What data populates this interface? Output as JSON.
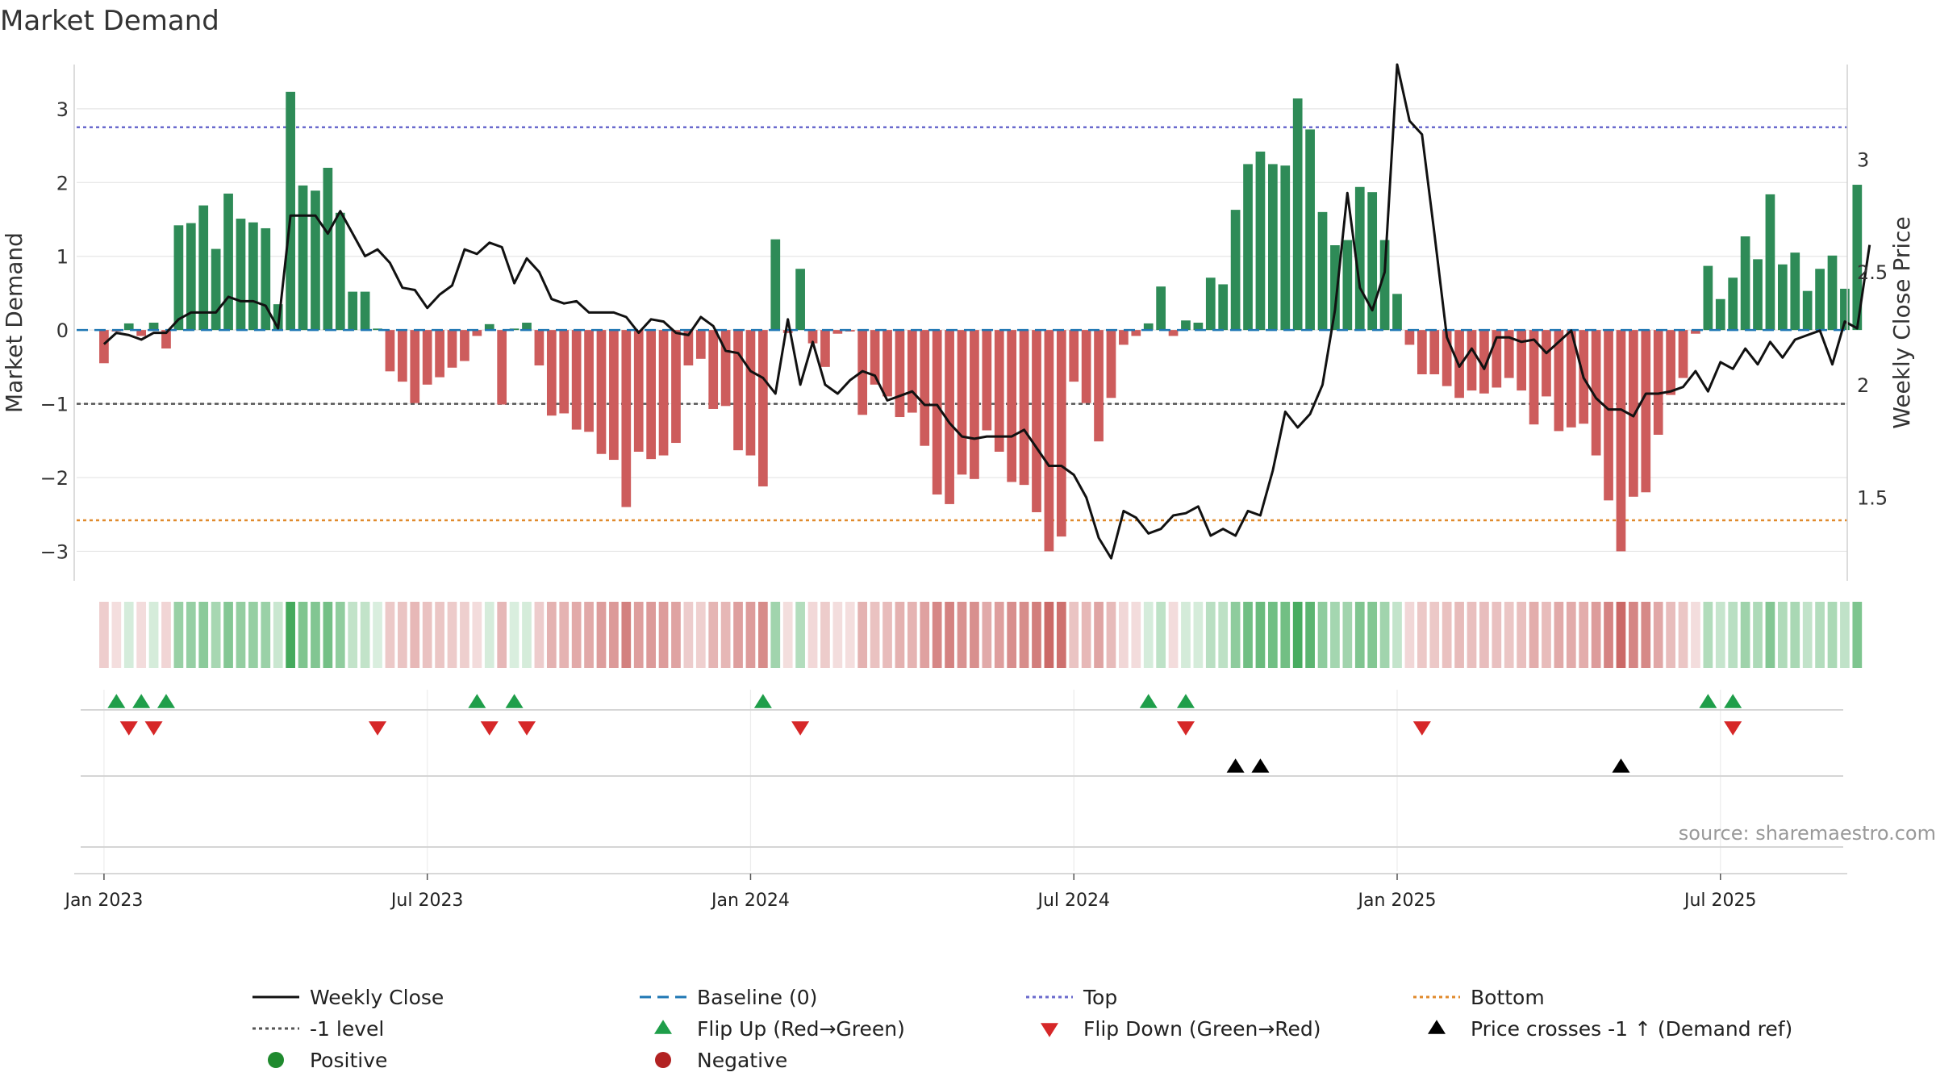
{
  "chart_data": {
    "type": "bar",
    "title": "Market Demand",
    "ylabel": "Market Demand",
    "y2label": "Weekly Close Price",
    "ylim": [
      -3.4,
      3.6
    ],
    "y2lim": [
      1.13,
      3.42
    ],
    "y_ticks": [
      3,
      2,
      1,
      0,
      -1,
      -2,
      -3
    ],
    "y_tick_labels": [
      "3",
      "2",
      "1",
      "0",
      "−1",
      "−2",
      "−3"
    ],
    "y2_ticks": [
      3,
      2.5,
      2,
      1.5
    ],
    "y2_tick_labels": [
      "3",
      "2.5",
      "2",
      "1.5"
    ],
    "x_range": [
      -2.2,
      140.2
    ],
    "x_ticks": [
      0,
      26,
      52,
      78,
      104,
      130
    ],
    "x_tick_labels": [
      "Jan 2023",
      "Jul 2023",
      "Jan 2024",
      "Jul 2024",
      "Jan 2025",
      "Jul 2025"
    ],
    "reference_lines": {
      "top": 2.75,
      "bottom": -2.58,
      "minus_one": -1,
      "baseline": 0
    },
    "demand": [
      -0.45,
      -0.02,
      0.09,
      -0.08,
      0.1,
      -0.25,
      1.42,
      1.45,
      1.69,
      1.1,
      1.85,
      1.51,
      1.46,
      1.38,
      0.35,
      3.23,
      1.96,
      1.89,
      2.2,
      1.59,
      0.52,
      0.52,
      0.02,
      -0.56,
      -0.7,
      -0.99,
      -0.74,
      -0.64,
      -0.51,
      -0.42,
      -0.08,
      0.08,
      -1.01,
      0.02,
      0.1,
      -0.48,
      -1.16,
      -1.13,
      -1.35,
      -1.38,
      -1.68,
      -1.76,
      -2.4,
      -1.65,
      -1.75,
      -1.7,
      -1.53,
      -0.48,
      -0.39,
      -1.07,
      -1.03,
      -1.63,
      -1.7,
      -2.12,
      1.23,
      -0.04,
      0.83,
      -0.18,
      -0.5,
      -0.05,
      -0.02,
      -1.15,
      -0.74,
      -0.9,
      -1.18,
      -1.12,
      -1.57,
      -2.23,
      -2.36,
      -1.96,
      -2.02,
      -1.36,
      -1.65,
      -2.06,
      -2.1,
      -2.47,
      -3.0,
      -2.8,
      -0.7,
      -0.99,
      -1.51,
      -0.92,
      -0.2,
      -0.08,
      0.09,
      0.59,
      -0.08,
      0.13,
      0.1,
      0.71,
      0.62,
      1.63,
      2.25,
      2.42,
      2.25,
      2.23,
      3.14,
      2.72,
      1.6,
      1.15,
      1.22,
      1.94,
      1.87,
      1.22,
      0.49,
      -0.2,
      -0.6,
      -0.6,
      -0.76,
      -0.92,
      -0.82,
      -0.86,
      -0.78,
      -0.65,
      -0.82,
      -1.28,
      -0.9,
      -1.37,
      -1.32,
      -1.27,
      -1.7,
      -2.31,
      -3.0,
      -2.26,
      -2.2,
      -1.42,
      -0.88,
      -0.65,
      -0.05,
      0.87,
      0.42,
      0.71,
      1.27,
      0.96,
      1.84,
      0.89,
      1.05,
      0.53,
      0.83,
      1.01,
      0.56,
      1.97
    ],
    "price": [
      2.18,
      2.23,
      2.22,
      2.2,
      2.23,
      2.23,
      2.29,
      2.32,
      2.32,
      2.32,
      2.39,
      2.37,
      2.37,
      2.35,
      2.25,
      2.75,
      2.75,
      2.75,
      2.67,
      2.77,
      2.67,
      2.57,
      2.6,
      2.54,
      2.43,
      2.42,
      2.34,
      2.4,
      2.44,
      2.6,
      2.58,
      2.63,
      2.61,
      2.45,
      2.56,
      2.5,
      2.38,
      2.36,
      2.37,
      2.32,
      2.32,
      2.32,
      2.3,
      2.23,
      2.29,
      2.28,
      2.23,
      2.22,
      2.3,
      2.26,
      2.15,
      2.14,
      2.06,
      2.03,
      1.96,
      2.29,
      2.0,
      2.19,
      2.0,
      1.96,
      2.02,
      2.06,
      2.04,
      1.93,
      1.95,
      1.97,
      1.91,
      1.91,
      1.83,
      1.77,
      1.76,
      1.77,
      1.77,
      1.77,
      1.8,
      1.72,
      1.64,
      1.64,
      1.6,
      1.5,
      1.32,
      1.23,
      1.44,
      1.41,
      1.34,
      1.36,
      1.42,
      1.43,
      1.46,
      1.33,
      1.36,
      1.33,
      1.44,
      1.42,
      1.62,
      1.88,
      1.81,
      1.87,
      2.0,
      2.33,
      2.85,
      2.43,
      2.33,
      2.5,
      3.42,
      3.17,
      3.11,
      2.67,
      2.21,
      2.08,
      2.16,
      2.07,
      2.21,
      2.21,
      2.19,
      2.2,
      2.14,
      2.19,
      2.24,
      2.03,
      1.94,
      1.89,
      1.89,
      1.86,
      1.96,
      1.96,
      1.97,
      1.99,
      2.06,
      1.97,
      2.1,
      2.07,
      2.16,
      2.09,
      2.19,
      2.12,
      2.2,
      2.22,
      2.24,
      2.09,
      2.28,
      2.25,
      2.62
    ],
    "flip_up_idx": [
      1,
      3,
      5,
      30,
      33,
      53,
      84,
      87,
      129,
      131
    ],
    "flip_down_idx": [
      2,
      4,
      22,
      31,
      34,
      56,
      87,
      106,
      131
    ],
    "price_cross_idx": [
      91,
      93,
      122
    ],
    "colors": {
      "positive_bar": "#2e8b57",
      "negative_bar": "#cd5c5c",
      "price_line": "#111111",
      "baseline": "#1f77b4",
      "top_line": "#6a6acd",
      "bottom_line": "#e08a2c",
      "minus_one_line": "#555555",
      "flip_up": "#1f9e4a",
      "flip_down": "#d62728",
      "price_cross": "#000000",
      "positive_dot": "#1f8a2e",
      "negative_dot": "#b22222"
    },
    "legend": [
      {
        "label": "Weekly Close",
        "marker": "line",
        "color": "#111111"
      },
      {
        "label": "Baseline (0)",
        "marker": "dashed",
        "color": "#1f77b4"
      },
      {
        "label": "Top",
        "marker": "dotted",
        "color": "#6a6acd"
      },
      {
        "label": "Bottom",
        "marker": "dotted",
        "color": "#e08a2c"
      },
      {
        "label": "-1 level",
        "marker": "dotted",
        "color": "#555555"
      },
      {
        "label": "Flip Up (Red→Green)",
        "marker": "triangle-up",
        "color": "#1f9e4a"
      },
      {
        "label": "Flip Down (Green→Red)",
        "marker": "triangle-down",
        "color": "#d62728"
      },
      {
        "label": "Price crosses -1 ↑ (Demand ref)",
        "marker": "triangle-up",
        "color": "#000000"
      },
      {
        "label": "Positive",
        "marker": "dot",
        "color": "#1f8a2e"
      },
      {
        "label": "Negative",
        "marker": "dot",
        "color": "#b22222"
      }
    ],
    "legend_position": "bottom",
    "source_note": "source: sharemaestro.com"
  }
}
